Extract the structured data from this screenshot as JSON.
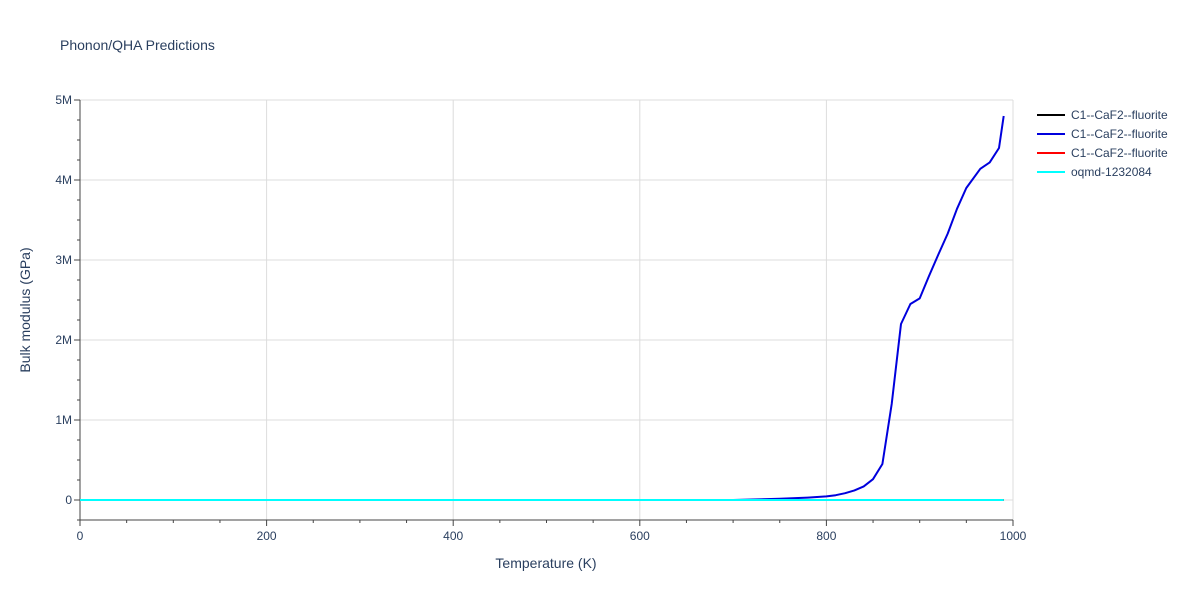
{
  "chart_data": {
    "type": "line",
    "title": "Phonon/QHA Predictions",
    "xlabel": "Temperature (K)",
    "ylabel": "Bulk modulus (GPa)",
    "xlim": [
      0,
      1000
    ],
    "ylim": [
      -250000,
      5000000
    ],
    "x_ticks": [
      0,
      200,
      400,
      600,
      800,
      1000
    ],
    "x_tick_labels": [
      "0",
      "200",
      "400",
      "600",
      "800",
      "1000"
    ],
    "y_ticks": [
      0,
      1000000,
      2000000,
      3000000,
      4000000,
      5000000
    ],
    "y_tick_labels": [
      "0",
      "1M",
      "2M",
      "3M",
      "4M",
      "5M"
    ],
    "grid": true,
    "legend_position": "top-right",
    "series": [
      {
        "name": "C1--CaF2--fluorite",
        "color": "#000000",
        "x": [
          0,
          100,
          200,
          300,
          400,
          500,
          600,
          700,
          800,
          900,
          990
        ],
        "y": [
          0,
          0,
          0,
          0,
          0,
          0,
          0,
          0,
          0,
          0,
          0
        ]
      },
      {
        "name": "C1--CaF2--fluorite",
        "color": "#0000dd",
        "x": [
          0,
          100,
          200,
          300,
          400,
          500,
          600,
          700,
          750,
          780,
          800,
          810,
          820,
          830,
          840,
          850,
          860,
          870,
          880,
          890,
          900,
          910,
          920,
          930,
          940,
          950,
          965,
          975,
          985,
          990
        ],
        "y": [
          0,
          0,
          0,
          0,
          0,
          0,
          0,
          0,
          15000,
          30000,
          45000,
          60000,
          85000,
          120000,
          170000,
          260000,
          450000,
          1200000,
          2200000,
          2450000,
          2520000,
          2800000,
          3070000,
          3330000,
          3640000,
          3900000,
          4140000,
          4220000,
          4400000,
          4800000
        ]
      },
      {
        "name": "C1--CaF2--fluorite",
        "color": "#ff0000",
        "x": [
          0,
          100,
          200,
          300,
          400,
          500,
          600,
          700,
          800,
          900,
          990
        ],
        "y": [
          0,
          0,
          0,
          0,
          0,
          0,
          0,
          0,
          0,
          0,
          0
        ]
      },
      {
        "name": "oqmd-1232084",
        "color": "#00ffff",
        "x": [
          0,
          100,
          200,
          300,
          400,
          500,
          600,
          700,
          800,
          900,
          990
        ],
        "y": [
          0,
          0,
          0,
          0,
          0,
          0,
          0,
          0,
          0,
          0,
          0
        ]
      }
    ]
  }
}
